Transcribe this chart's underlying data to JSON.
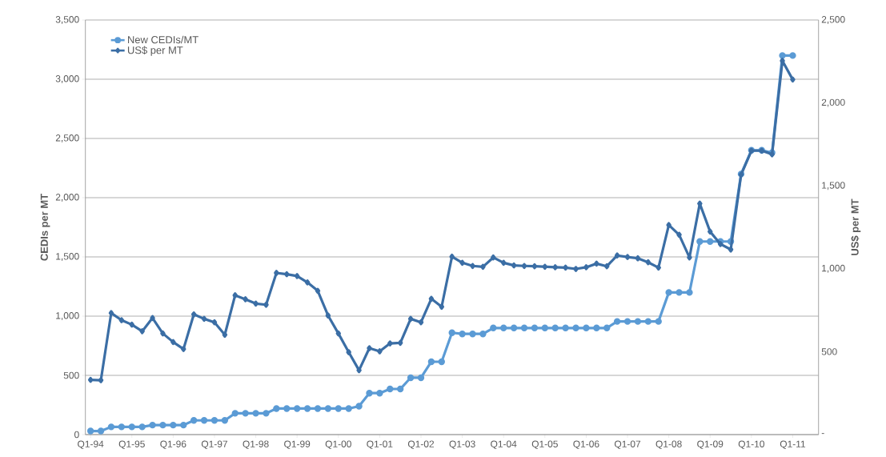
{
  "chart_data": {
    "type": "line",
    "categories": [
      "Q1-94",
      null,
      null,
      null,
      "Q1-95",
      null,
      null,
      null,
      "Q1-96",
      null,
      null,
      null,
      "Q1-97",
      null,
      null,
      null,
      "Q1-98",
      null,
      null,
      null,
      "Q1-99",
      null,
      null,
      null,
      "Q1-00",
      null,
      null,
      null,
      "Q1-01",
      null,
      null,
      null,
      "Q1-02",
      null,
      null,
      null,
      "Q1-03",
      null,
      null,
      null,
      "Q1-04",
      null,
      null,
      null,
      "Q1-05",
      null,
      null,
      null,
      "Q1-06",
      null,
      null,
      null,
      "Q1-07",
      null,
      null,
      null,
      "Q1-08",
      null,
      null,
      null,
      "Q1-09",
      null,
      null,
      null,
      "Q1-10",
      null,
      null,
      null,
      "Q1-11",
      null,
      null
    ],
    "series": [
      {
        "name": "New CEDIs/MT",
        "color": "#5b9bd5",
        "marker": "circle",
        "values": [
          30,
          30,
          65,
          65,
          65,
          65,
          80,
          80,
          80,
          80,
          120,
          120,
          120,
          120,
          180,
          180,
          180,
          180,
          220,
          220,
          220,
          220,
          220,
          220,
          220,
          220,
          240,
          350,
          350,
          385,
          385,
          480,
          480,
          615,
          615,
          860,
          850,
          850,
          850,
          900,
          900,
          900,
          900,
          900,
          900,
          900,
          900,
          900,
          900,
          900,
          900,
          955,
          955,
          955,
          955,
          955,
          1200,
          1200,
          1200,
          1630,
          1630,
          1630,
          1630,
          2200,
          2400,
          2400,
          2380,
          3200,
          3200,
          null,
          null
        ]
      },
      {
        "name": "US$ per MT",
        "color": "#3b6ea5",
        "marker": "diamond",
        "axis": "y2",
        "values": [
          330,
          328,
          733,
          690,
          663,
          623,
          703,
          610,
          558,
          516,
          725,
          698,
          677,
          602,
          840,
          816,
          790,
          783,
          975,
          967,
          956,
          918,
          867,
          718,
          610,
          497,
          388,
          521,
          502,
          550,
          553,
          698,
          677,
          819,
          771,
          1073,
          1036,
          1017,
          1012,
          1068,
          1036,
          1020,
          1017,
          1015,
          1012,
          1009,
          1007,
          999,
          1009,
          1031,
          1015,
          1080,
          1071,
          1063,
          1039,
          1007,
          1264,
          1205,
          1068,
          1393,
          1224,
          1149,
          1116,
          1567,
          1712,
          1712,
          1690,
          2254,
          2141,
          null,
          null
        ]
      }
    ],
    "ylabel": "CEDIs per MT",
    "y2label": "US$ per MT",
    "ylim": [
      0,
      3500
    ],
    "yticks": [
      0,
      500,
      {
        "value": 1000,
        "label": "1,000"
      },
      {
        "value": 1500,
        "label": "1,500"
      },
      {
        "value": 2000,
        "label": "2,000"
      },
      {
        "value": 2500,
        "label": "2,500"
      },
      {
        "value": 3000,
        "label": "3,000"
      },
      {
        "value": 3500,
        "label": "3,500"
      }
    ],
    "y2lim": [
      0,
      2500
    ],
    "y2ticks": [
      {
        "value": 0,
        "label": "-"
      },
      500,
      {
        "value": 1000,
        "label": "1,000"
      },
      {
        "value": 1500,
        "label": "1,500"
      },
      {
        "value": 2000,
        "label": "2,000"
      },
      {
        "value": 2500,
        "label": "2,500"
      }
    ],
    "grid": "y",
    "legend": "top left",
    "line_style": "solid"
  }
}
